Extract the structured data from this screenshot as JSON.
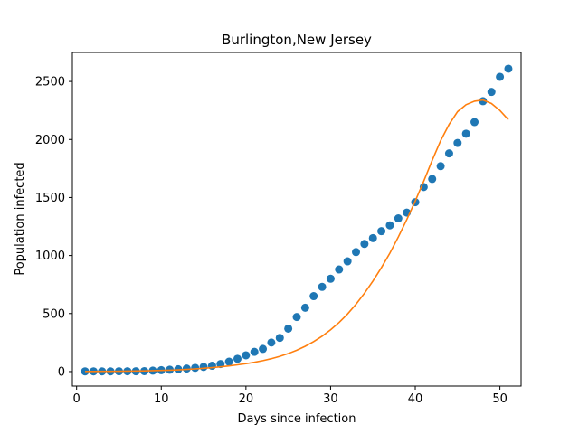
{
  "chart_data": {
    "type": "scatter",
    "title": "Burlington,New Jersey",
    "xlabel": "Days since infection",
    "ylabel": "Population infected",
    "xlim": [
      -0.5,
      52.5
    ],
    "ylim": [
      -125,
      2750
    ],
    "xticks": [
      0,
      10,
      20,
      30,
      40,
      50
    ],
    "yticks": [
      0,
      500,
      1000,
      1500,
      2000,
      2500
    ],
    "grid": false,
    "series": [
      {
        "kind": "scatter",
        "color": "#1f77b4",
        "x": [
          1,
          2,
          3,
          4,
          5,
          6,
          7,
          8,
          9,
          10,
          11,
          12,
          13,
          14,
          15,
          16,
          17,
          18,
          19,
          20,
          21,
          22,
          23,
          24,
          25,
          26,
          27,
          28,
          29,
          30,
          31,
          32,
          33,
          34,
          35,
          36,
          37,
          38,
          39,
          40,
          41,
          42,
          43,
          44,
          45,
          46,
          47,
          48,
          49,
          50,
          51
        ],
        "y": [
          2,
          2,
          2,
          2,
          3,
          3,
          3,
          4,
          8,
          12,
          16,
          20,
          26,
          32,
          40,
          50,
          65,
          85,
          110,
          140,
          170,
          195,
          250,
          290,
          370,
          470,
          550,
          650,
          730,
          800,
          880,
          950,
          1030,
          1100,
          1150,
          1210,
          1260,
          1320,
          1370,
          1460,
          1590,
          1660,
          1770,
          1880,
          1970,
          2050,
          2150,
          2330,
          2410,
          2540,
          2610
        ]
      },
      {
        "kind": "line",
        "color": "#ff7f0e",
        "x": [
          1,
          2,
          3,
          4,
          5,
          6,
          7,
          8,
          9,
          10,
          11,
          12,
          13,
          14,
          15,
          16,
          17,
          18,
          19,
          20,
          21,
          22,
          23,
          24,
          25,
          26,
          27,
          28,
          29,
          30,
          31,
          32,
          33,
          34,
          35,
          36,
          37,
          38,
          39,
          40,
          41,
          42,
          43,
          44,
          45,
          46,
          47,
          48,
          49,
          50,
          51
        ],
        "y": [
          1,
          1,
          2,
          2,
          3,
          4,
          5,
          6,
          8,
          10,
          12,
          15,
          19,
          23,
          28,
          34,
          41,
          49,
          58,
          68,
          80,
          94,
          111,
          131,
          155,
          184,
          218,
          258,
          305,
          360,
          423,
          496,
          580,
          675,
          780,
          895,
          1020,
          1160,
          1310,
          1470,
          1640,
          1820,
          1990,
          2130,
          2240,
          2300,
          2330,
          2340,
          2310,
          2250,
          2170
        ]
      }
    ]
  }
}
